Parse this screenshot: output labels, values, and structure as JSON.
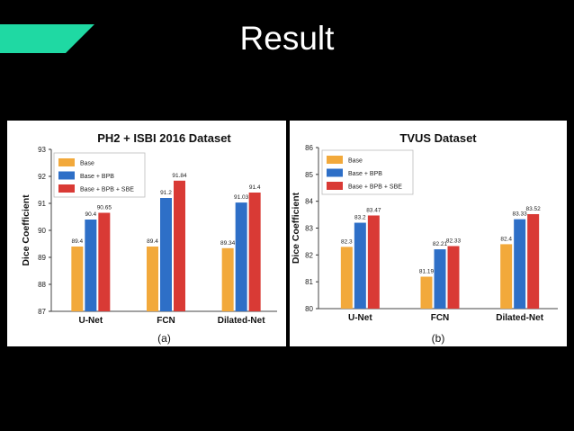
{
  "slide": {
    "title": "Result",
    "accent_color": "#1fd9a3"
  },
  "colors": {
    "base": "#f2a93b",
    "bpb": "#2e6fc7",
    "sbe": "#d93a35"
  },
  "chart_data": [
    {
      "type": "bar",
      "title": "PH2 + ISBI 2016 Dataset",
      "xlabel": "",
      "ylabel": "Dice Coefficient",
      "caption": "(a)",
      "ylim": [
        87,
        93
      ],
      "yticks": [
        87,
        88,
        89,
        90,
        91,
        92,
        93
      ],
      "categories": [
        "U-Net",
        "FCN",
        "Dilated-Net"
      ],
      "legend_position": "top-left",
      "grid": false,
      "series": [
        {
          "name": "Base",
          "values": [
            89.4,
            89.4,
            89.34
          ],
          "labels": [
            "89.4",
            "89.4",
            "89.34"
          ]
        },
        {
          "name": "Base + BPB",
          "values": [
            90.4,
            91.2,
            91.03
          ],
          "labels": [
            "90.4",
            "91.2",
            "91.03"
          ]
        },
        {
          "name": "Base + BPB + SBE",
          "values": [
            90.65,
            91.84,
            91.4
          ],
          "labels": [
            "90.65",
            "91.84",
            "91.4"
          ]
        }
      ]
    },
    {
      "type": "bar",
      "title": "TVUS Dataset",
      "xlabel": "",
      "ylabel": "Dice Coefficient",
      "caption": "(b)",
      "ylim": [
        80,
        86
      ],
      "yticks": [
        80,
        81,
        82,
        83,
        84,
        85,
        86
      ],
      "categories": [
        "U-Net",
        "FCN",
        "Dilated-Net"
      ],
      "legend_position": "top-left",
      "grid": false,
      "series": [
        {
          "name": "Base",
          "values": [
            82.3,
            81.19,
            82.4
          ],
          "labels": [
            "82.3",
            "81.19",
            "82.4"
          ]
        },
        {
          "name": "Base + BPB",
          "values": [
            83.2,
            82.21,
            83.33
          ],
          "labels": [
            "83.2",
            "82.21",
            "83.33"
          ]
        },
        {
          "name": "Base + BPB + SBE",
          "values": [
            83.47,
            82.33,
            83.52
          ],
          "labels": [
            "83.47",
            "82.33",
            "83.52"
          ]
        }
      ]
    }
  ]
}
